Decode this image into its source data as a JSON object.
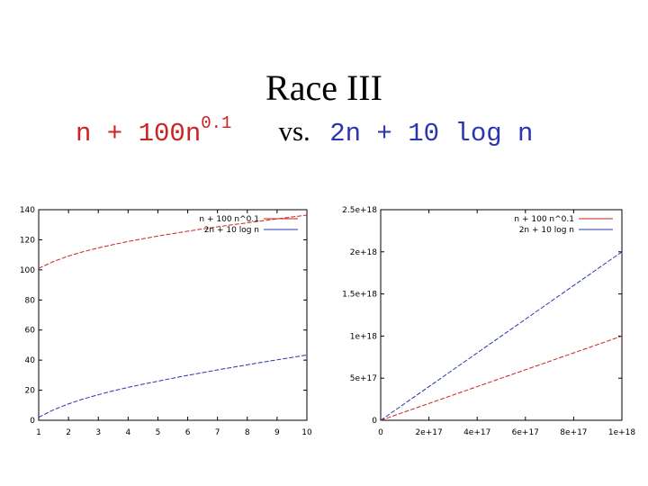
{
  "slide": {
    "title": "Race III",
    "subtitle_left_base": "n + 100n",
    "subtitle_left_exp": "0.1",
    "subtitle_vs": "vs.",
    "subtitle_right": "2n + 10 log n"
  },
  "colors": {
    "red": "#cc2222",
    "blue": "#2a35b0"
  },
  "chart_data": [
    {
      "type": "line",
      "title": "",
      "xlabel": "",
      "ylabel": "",
      "xlim": [
        1,
        10
      ],
      "ylim": [
        0,
        140
      ],
      "xticks": [
        "1",
        "2",
        "3",
        "4",
        "5",
        "6",
        "7",
        "8",
        "9",
        "10"
      ],
      "yticks": [
        "0",
        "20",
        "40",
        "60",
        "80",
        "100",
        "120",
        "140"
      ],
      "legend_position": "top-right",
      "series": [
        {
          "name": "n + 100 n^0.1",
          "color": "#cc2222",
          "x": [
            1,
            1.5,
            2,
            2.5,
            3,
            3.5,
            4,
            4.5,
            5,
            5.5,
            6,
            6.5,
            7,
            7.5,
            8,
            8.5,
            9,
            9.5,
            10
          ],
          "y": [
            101,
            105.6,
            109.2,
            112.1,
            114.6,
            116.8,
            118.9,
            120.7,
            122.5,
            124.1,
            125.7,
            127.2,
            128.6,
            130,
            131.3,
            132.6,
            133.9,
            135.2,
            136.4
          ]
        },
        {
          "name": "2n + 10 log n",
          "color": "#2a35b0",
          "x": [
            1,
            1.5,
            2,
            2.5,
            3,
            3.5,
            4,
            4.5,
            5,
            5.5,
            6,
            6.5,
            7,
            7.5,
            8,
            8.5,
            9,
            9.5,
            10
          ],
          "y": [
            2,
            7.0,
            10.9,
            14.2,
            17.0,
            19.6,
            21.9,
            24.0,
            26.0,
            28.0,
            29.9,
            31.7,
            33.5,
            35.2,
            36.9,
            38.6,
            40.2,
            41.8,
            43.4
          ]
        }
      ]
    },
    {
      "type": "line",
      "title": "",
      "xlabel": "",
      "ylabel": "",
      "xlim": [
        0,
        1e+18
      ],
      "ylim": [
        0,
        2.5e+18
      ],
      "xticks": [
        "0",
        "2e+17",
        "4e+17",
        "6e+17",
        "8e+17",
        "1e+18"
      ],
      "yticks": [
        "0",
        "5e+17",
        "1e+18",
        "1.5e+18",
        "2e+18",
        "2.5e+18"
      ],
      "legend_position": "top-right",
      "series": [
        {
          "name": "n + 100 n^0.1",
          "color": "#cc2222",
          "x": [
            0,
            1e+18
          ],
          "y": [
            0,
            1e+18
          ]
        },
        {
          "name": "2n + 10 log n",
          "color": "#2a35b0",
          "x": [
            0,
            1e+18
          ],
          "y": [
            0,
            2e+18
          ]
        }
      ]
    }
  ]
}
